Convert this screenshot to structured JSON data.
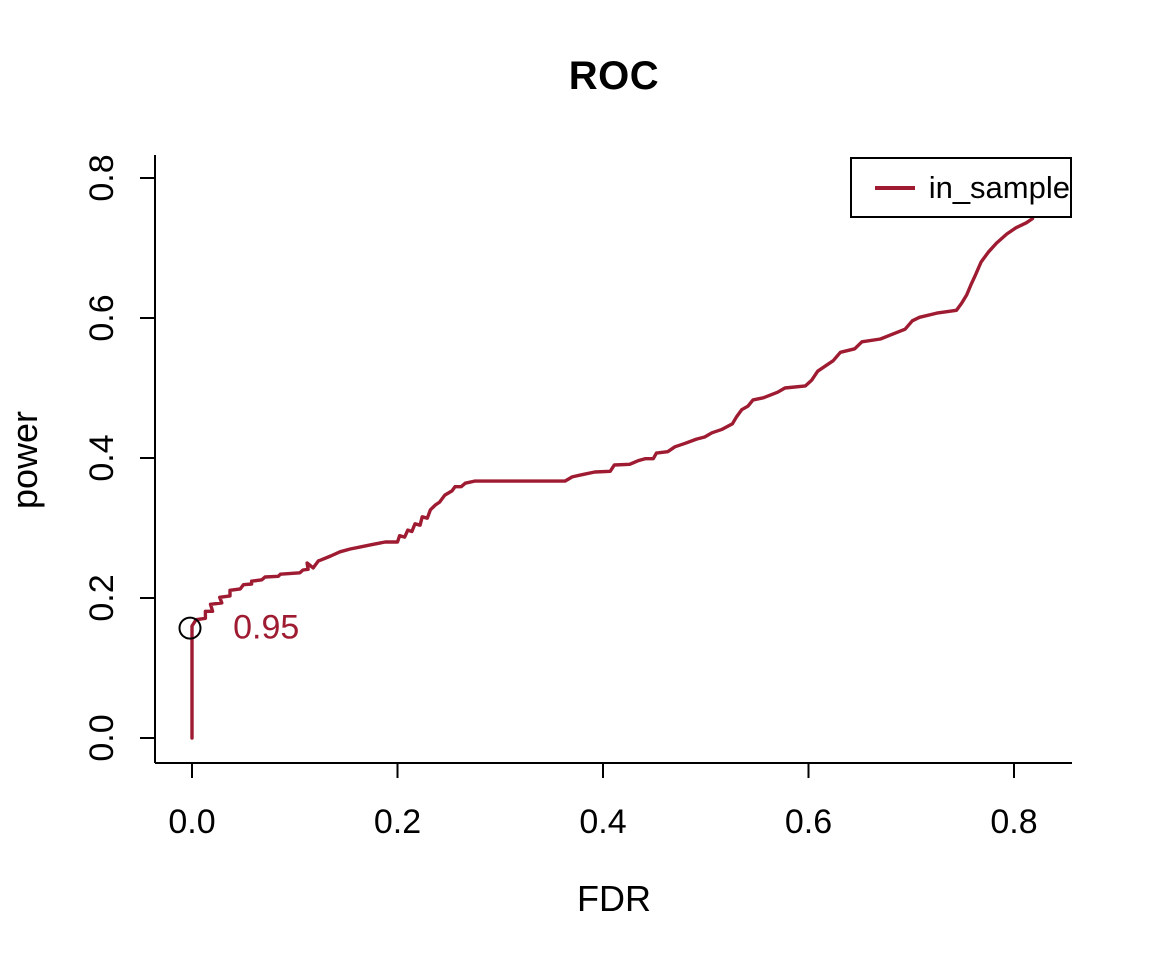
{
  "colors": {
    "line": "#9e1b32",
    "axis": "#000000",
    "background": "#ffffff"
  },
  "chart_data": {
    "type": "line",
    "title": "ROC",
    "xlabel": "FDR",
    "ylabel": "power",
    "xlim": [
      0,
      0.85
    ],
    "ylim": [
      0,
      0.85
    ],
    "grid": false,
    "x_ticks": [
      {
        "value": 0.0,
        "label": "0.0"
      },
      {
        "value": 0.2,
        "label": "0.2"
      },
      {
        "value": 0.4,
        "label": "0.4"
      },
      {
        "value": 0.6,
        "label": "0.6"
      },
      {
        "value": 0.8,
        "label": "0.8"
      }
    ],
    "y_ticks": [
      {
        "value": 0.0,
        "label": "0.0"
      },
      {
        "value": 0.2,
        "label": "0.2"
      },
      {
        "value": 0.4,
        "label": "0.4"
      },
      {
        "value": 0.6,
        "label": "0.6"
      },
      {
        "value": 0.8,
        "label": "0.8"
      }
    ],
    "legend": {
      "position": "top-right",
      "entries": [
        {
          "label": "in_sample",
          "color": "#9e1b32"
        }
      ]
    },
    "annotation": {
      "label": "0.95",
      "marker": "open-circle",
      "marker_x": 0.0,
      "marker_y": 0.157,
      "label_x": 0.04,
      "label_y": 0.156
    },
    "series": [
      {
        "name": "in_sample",
        "color": "#9e1b32",
        "points": [
          [
            0.0,
            0.0
          ],
          [
            0.0,
            0.16
          ],
          [
            0.004,
            0.169
          ],
          [
            0.013,
            0.171
          ],
          [
            0.013,
            0.181
          ],
          [
            0.02,
            0.181
          ],
          [
            0.018,
            0.191
          ],
          [
            0.029,
            0.193
          ],
          [
            0.027,
            0.201
          ],
          [
            0.037,
            0.203
          ],
          [
            0.037,
            0.211
          ],
          [
            0.047,
            0.213
          ],
          [
            0.05,
            0.219
          ],
          [
            0.058,
            0.22
          ],
          [
            0.058,
            0.224
          ],
          [
            0.068,
            0.226
          ],
          [
            0.071,
            0.23
          ],
          [
            0.084,
            0.231
          ],
          [
            0.086,
            0.234
          ],
          [
            0.105,
            0.236
          ],
          [
            0.108,
            0.24
          ],
          [
            0.113,
            0.241
          ],
          [
            0.112,
            0.25
          ],
          [
            0.118,
            0.243
          ],
          [
            0.123,
            0.253
          ],
          [
            0.125,
            0.254
          ],
          [
            0.135,
            0.26
          ],
          [
            0.144,
            0.266
          ],
          [
            0.154,
            0.27
          ],
          [
            0.164,
            0.273
          ],
          [
            0.174,
            0.276
          ],
          [
            0.188,
            0.28
          ],
          [
            0.2,
            0.28
          ],
          [
            0.202,
            0.289
          ],
          [
            0.207,
            0.287
          ],
          [
            0.21,
            0.297
          ],
          [
            0.214,
            0.295
          ],
          [
            0.217,
            0.306
          ],
          [
            0.222,
            0.304
          ],
          [
            0.224,
            0.316
          ],
          [
            0.229,
            0.314
          ],
          [
            0.232,
            0.326
          ],
          [
            0.237,
            0.333
          ],
          [
            0.241,
            0.337
          ],
          [
            0.246,
            0.347
          ],
          [
            0.253,
            0.353
          ],
          [
            0.256,
            0.359
          ],
          [
            0.262,
            0.359
          ],
          [
            0.266,
            0.364
          ],
          [
            0.275,
            0.367
          ],
          [
            0.363,
            0.367
          ],
          [
            0.37,
            0.373
          ],
          [
            0.379,
            0.376
          ],
          [
            0.392,
            0.38
          ],
          [
            0.407,
            0.381
          ],
          [
            0.411,
            0.39
          ],
          [
            0.426,
            0.391
          ],
          [
            0.434,
            0.396
          ],
          [
            0.441,
            0.399
          ],
          [
            0.449,
            0.399
          ],
          [
            0.452,
            0.407
          ],
          [
            0.463,
            0.409
          ],
          [
            0.47,
            0.416
          ],
          [
            0.48,
            0.421
          ],
          [
            0.491,
            0.427
          ],
          [
            0.499,
            0.43
          ],
          [
            0.506,
            0.436
          ],
          [
            0.516,
            0.441
          ],
          [
            0.526,
            0.449
          ],
          [
            0.53,
            0.459
          ],
          [
            0.535,
            0.469
          ],
          [
            0.541,
            0.474
          ],
          [
            0.546,
            0.483
          ],
          [
            0.556,
            0.486
          ],
          [
            0.57,
            0.494
          ],
          [
            0.577,
            0.5
          ],
          [
            0.597,
            0.503
          ],
          [
            0.603,
            0.511
          ],
          [
            0.609,
            0.524
          ],
          [
            0.616,
            0.531
          ],
          [
            0.624,
            0.539
          ],
          [
            0.631,
            0.551
          ],
          [
            0.645,
            0.556
          ],
          [
            0.652,
            0.566
          ],
          [
            0.67,
            0.57
          ],
          [
            0.682,
            0.577
          ],
          [
            0.694,
            0.584
          ],
          [
            0.701,
            0.596
          ],
          [
            0.708,
            0.601
          ],
          [
            0.725,
            0.607
          ],
          [
            0.744,
            0.611
          ],
          [
            0.749,
            0.621
          ],
          [
            0.754,
            0.633
          ],
          [
            0.758,
            0.647
          ],
          [
            0.762,
            0.66
          ],
          [
            0.768,
            0.68
          ],
          [
            0.775,
            0.694
          ],
          [
            0.783,
            0.707
          ],
          [
            0.793,
            0.72
          ],
          [
            0.802,
            0.729
          ],
          [
            0.812,
            0.736
          ],
          [
            0.818,
            0.742
          ]
        ]
      }
    ]
  }
}
